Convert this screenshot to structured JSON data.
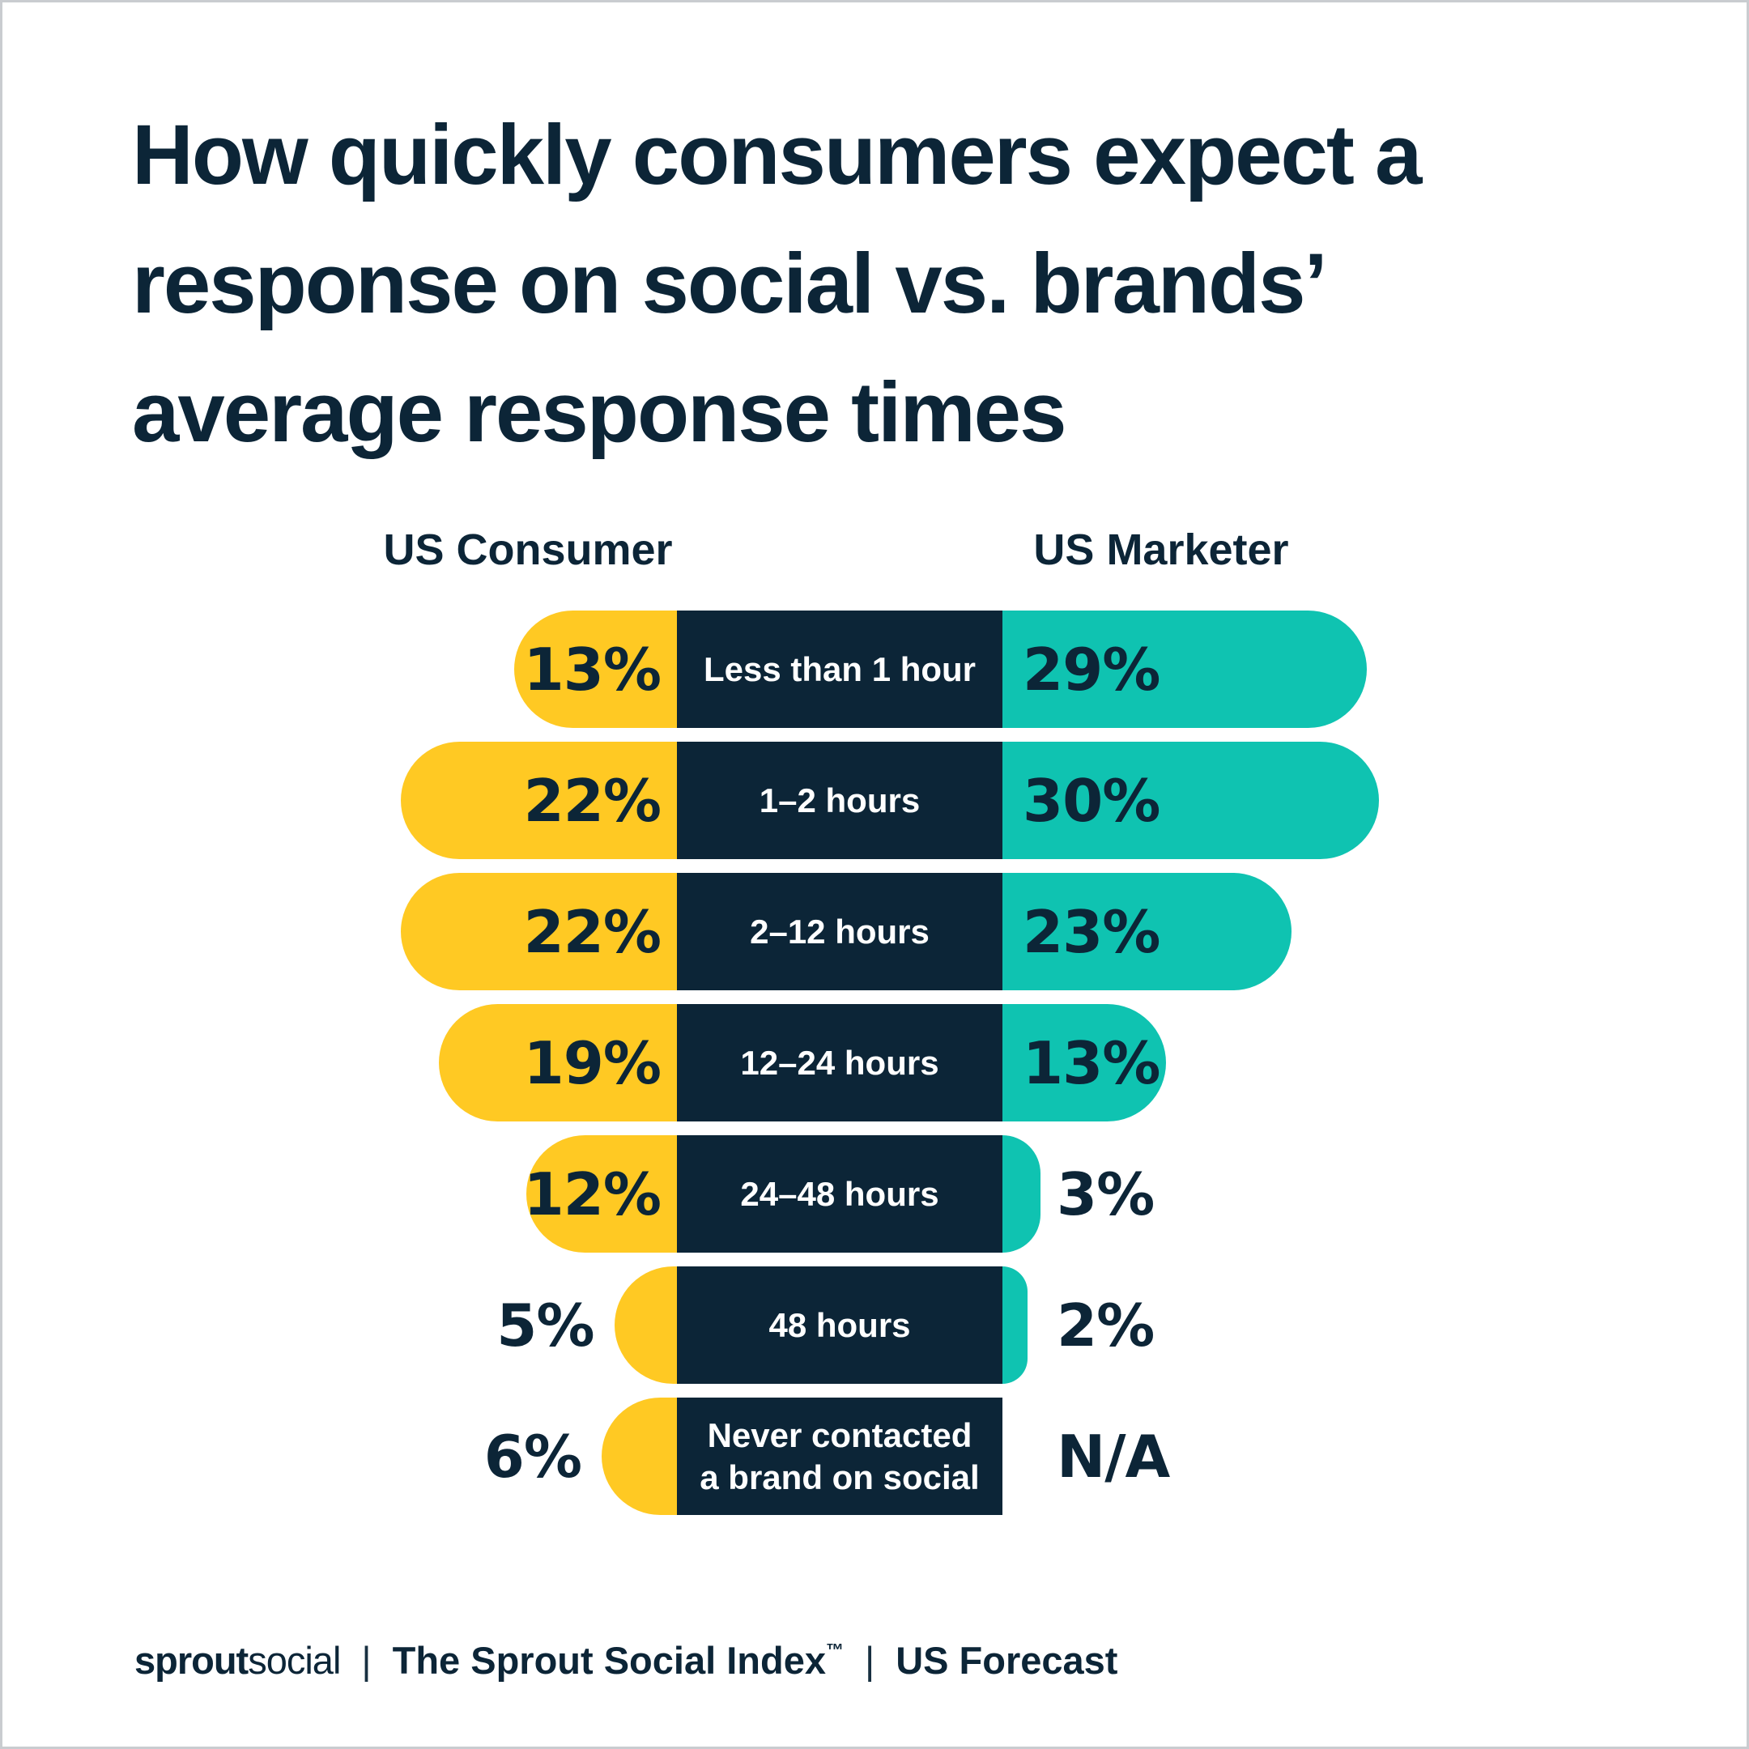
{
  "title": {
    "lines": [
      "How quickly consumers expect a",
      "response on social vs. brands’",
      "average response times"
    ]
  },
  "legend": {
    "consumer": "US Consumer",
    "marketer": "US Marketer"
  },
  "rows": [
    {
      "label_lines": [
        "Less than 1 hour"
      ],
      "consumer": 13,
      "marketer": 29,
      "consumer_label": "13%",
      "marketer_label": "29%"
    },
    {
      "label_lines": [
        "1–2 hours"
      ],
      "consumer": 22,
      "marketer": 30,
      "consumer_label": "22%",
      "marketer_label": "30%"
    },
    {
      "label_lines": [
        "2–12 hours"
      ],
      "consumer": 22,
      "marketer": 23,
      "consumer_label": "22%",
      "marketer_label": "23%"
    },
    {
      "label_lines": [
        "12–24 hours"
      ],
      "consumer": 19,
      "marketer": 13,
      "consumer_label": "19%",
      "marketer_label": "13%"
    },
    {
      "label_lines": [
        "24–48 hours"
      ],
      "consumer": 12,
      "marketer": 3,
      "consumer_label": "12%",
      "marketer_label": "3%"
    },
    {
      "label_lines": [
        "48 hours"
      ],
      "consumer": 5,
      "marketer": 2,
      "consumer_label": "5%",
      "marketer_label": "2%"
    },
    {
      "label_lines": [
        "Never contacted",
        "a brand on social"
      ],
      "consumer": 6,
      "marketer": null,
      "consumer_label": "6%",
      "marketer_label": "N/A"
    }
  ],
  "chart_data": {
    "type": "bar",
    "subtype": "diverging-butterfly",
    "title": "How quickly consumers expect a response on social vs. brands’ average response times",
    "categories": [
      "Less than 1 hour",
      "1–2 hours",
      "2–12 hours",
      "12–24 hours",
      "24–48 hours",
      "48 hours",
      "Never contacted a brand on social"
    ],
    "series": [
      {
        "name": "US Consumer",
        "unit": "%",
        "color": "#FFC923",
        "values": [
          13,
          22,
          22,
          19,
          12,
          5,
          6
        ]
      },
      {
        "name": "US Marketer",
        "unit": "%",
        "color": "#0FC3B1",
        "values": [
          29,
          30,
          23,
          13,
          3,
          2,
          null
        ]
      }
    ],
    "na_label": "N/A",
    "value_labels_shown": true,
    "legend_position": "top",
    "grid": false
  },
  "footer": {
    "logo_bold": "sprout",
    "logo_light": "social",
    "divider": "|",
    "index_title": "The Sprout Social Index",
    "index_tm": "™",
    "report": "US Forecast"
  },
  "colors": {
    "consumer_bar": "#FFC923",
    "marketer_bar": "#0FC3B1",
    "navy": "#0C2537",
    "background": "#FFFFFF",
    "frame_border": "#C9CCD0",
    "mid_label_text": "#FFFFFF"
  }
}
